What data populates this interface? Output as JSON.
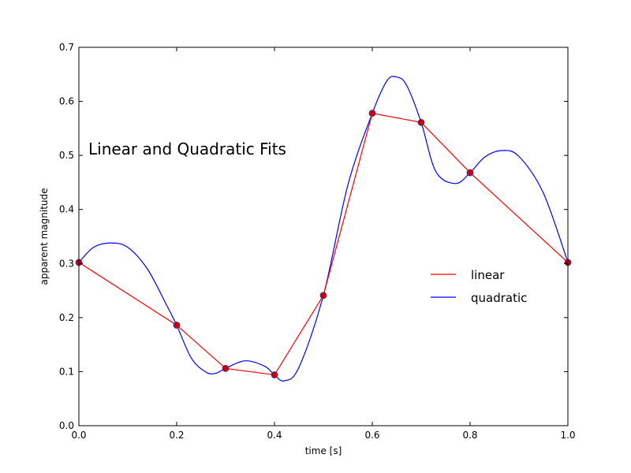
{
  "chart_data": {
    "type": "line",
    "title": "",
    "annotation": "Linear and Quadratic Fits",
    "xlabel": "time [s]",
    "ylabel": "apparent magnitude",
    "xlim": [
      0.0,
      1.0
    ],
    "ylim": [
      0.0,
      0.7
    ],
    "x_ticks": [
      0.0,
      0.2,
      0.4,
      0.6,
      0.8,
      1.0
    ],
    "x_tick_labels": [
      "0.0",
      "0.2",
      "0.4",
      "0.6",
      "0.8",
      "1.0"
    ],
    "y_ticks": [
      0.0,
      0.1,
      0.2,
      0.3,
      0.4,
      0.5,
      0.6,
      0.7
    ],
    "y_tick_labels": [
      "0.0",
      "0.1",
      "0.2",
      "0.3",
      "0.4",
      "0.5",
      "0.6",
      "0.7"
    ],
    "grid": false,
    "legend_position": "right",
    "points": {
      "x": [
        0.0,
        0.2,
        0.3,
        0.4,
        0.5,
        0.6,
        0.7,
        0.8,
        1.0
      ],
      "y": [
        0.302,
        0.186,
        0.106,
        0.094,
        0.241,
        0.578,
        0.561,
        0.468,
        0.302
      ],
      "color": "#cc0000",
      "edge_color": "#3333aa"
    },
    "series": [
      {
        "name": "linear",
        "color": "#ff0000",
        "x": [
          0.0,
          0.2,
          0.3,
          0.4,
          0.5,
          0.6,
          0.7,
          0.8,
          1.0
        ],
        "values": [
          0.302,
          0.186,
          0.106,
          0.094,
          0.241,
          0.578,
          0.561,
          0.468,
          0.302
        ]
      },
      {
        "name": "quadratic",
        "color": "#0000ff",
        "x": [
          0.0,
          0.03,
          0.065,
          0.1,
          0.14,
          0.18,
          0.2,
          0.23,
          0.26,
          0.28,
          0.3,
          0.34,
          0.38,
          0.4,
          0.42,
          0.45,
          0.5,
          0.55,
          0.6,
          0.63,
          0.65,
          0.67,
          0.7,
          0.73,
          0.77,
          0.8,
          0.83,
          0.865,
          0.9,
          0.95,
          1.0
        ],
        "values": [
          0.302,
          0.33,
          0.338,
          0.33,
          0.29,
          0.222,
          0.186,
          0.125,
          0.099,
          0.097,
          0.106,
          0.12,
          0.11,
          0.094,
          0.083,
          0.108,
          0.241,
          0.445,
          0.578,
          0.638,
          0.645,
          0.63,
          0.561,
          0.47,
          0.448,
          0.468,
          0.497,
          0.509,
          0.498,
          0.43,
          0.302
        ]
      }
    ]
  }
}
